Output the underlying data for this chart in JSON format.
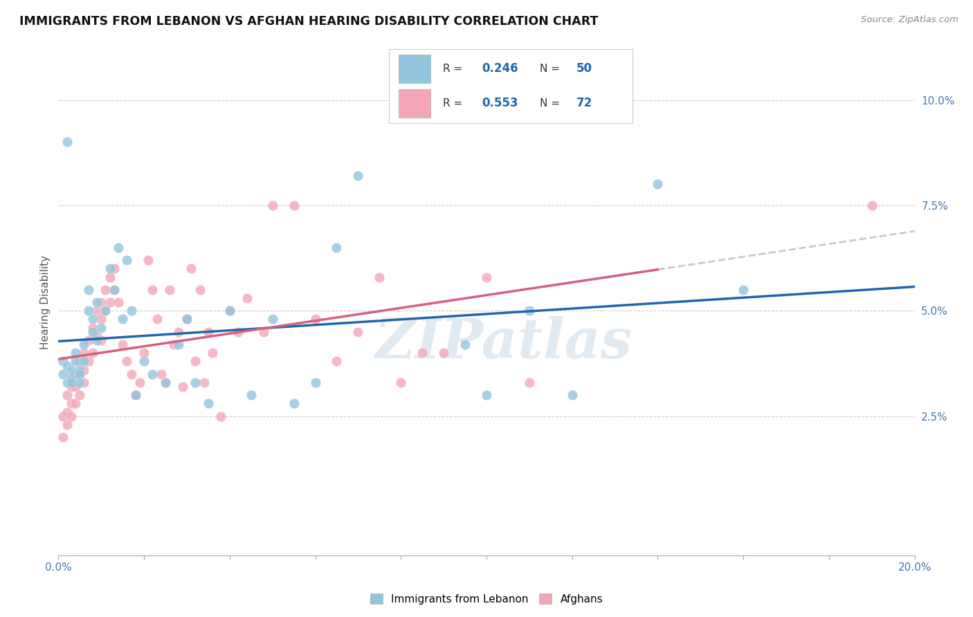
{
  "title": "IMMIGRANTS FROM LEBANON VS AFGHAN HEARING DISABILITY CORRELATION CHART",
  "source": "Source: ZipAtlas.com",
  "ylabel": "Hearing Disability",
  "xlim": [
    0.0,
    0.2
  ],
  "ylim": [
    -0.008,
    0.112
  ],
  "xtick_positions": [
    0.0,
    0.02,
    0.04,
    0.06,
    0.08,
    0.1,
    0.12,
    0.14,
    0.16,
    0.18,
    0.2
  ],
  "xtick_labels": [
    "0.0%",
    "",
    "",
    "",
    "",
    "",
    "",
    "",
    "",
    "",
    "20.0%"
  ],
  "ytick_positions": [
    0.025,
    0.05,
    0.075,
    0.1
  ],
  "ytick_labels": [
    "2.5%",
    "5.0%",
    "7.5%",
    "10.0%"
  ],
  "lebanon_R": 0.246,
  "lebanon_N": 50,
  "afghan_R": 0.553,
  "afghan_N": 72,
  "lebanon_color": "#92c5de",
  "afghan_color": "#f4a6b8",
  "lebanon_line_color": "#2166ac",
  "afghan_line_color": "#d6607a",
  "dashed_color": "#c8c8c8",
  "watermark_text": "ZIPatlas",
  "lebanon_x": [
    0.001,
    0.001,
    0.002,
    0.002,
    0.003,
    0.003,
    0.003,
    0.004,
    0.004,
    0.005,
    0.005,
    0.005,
    0.006,
    0.006,
    0.007,
    0.007,
    0.008,
    0.008,
    0.009,
    0.009,
    0.01,
    0.011,
    0.012,
    0.013,
    0.014,
    0.015,
    0.016,
    0.017,
    0.018,
    0.02,
    0.022,
    0.025,
    0.028,
    0.03,
    0.032,
    0.035,
    0.04,
    0.045,
    0.05,
    0.055,
    0.06,
    0.065,
    0.07,
    0.095,
    0.1,
    0.11,
    0.12,
    0.14,
    0.16,
    0.002
  ],
  "lebanon_y": [
    0.035,
    0.038,
    0.033,
    0.037,
    0.036,
    0.034,
    0.033,
    0.04,
    0.038,
    0.036,
    0.035,
    0.033,
    0.042,
    0.038,
    0.05,
    0.055,
    0.048,
    0.045,
    0.043,
    0.052,
    0.046,
    0.05,
    0.06,
    0.055,
    0.065,
    0.048,
    0.062,
    0.05,
    0.03,
    0.038,
    0.035,
    0.033,
    0.042,
    0.048,
    0.033,
    0.028,
    0.05,
    0.03,
    0.048,
    0.028,
    0.033,
    0.065,
    0.082,
    0.042,
    0.03,
    0.05,
    0.03,
    0.08,
    0.055,
    0.09
  ],
  "afghan_x": [
    0.001,
    0.001,
    0.002,
    0.002,
    0.002,
    0.003,
    0.003,
    0.003,
    0.004,
    0.004,
    0.004,
    0.005,
    0.005,
    0.005,
    0.006,
    0.006,
    0.006,
    0.007,
    0.007,
    0.008,
    0.008,
    0.009,
    0.009,
    0.01,
    0.01,
    0.01,
    0.011,
    0.011,
    0.012,
    0.012,
    0.013,
    0.013,
    0.014,
    0.015,
    0.016,
    0.017,
    0.018,
    0.019,
    0.02,
    0.021,
    0.022,
    0.023,
    0.024,
    0.025,
    0.026,
    0.027,
    0.028,
    0.029,
    0.03,
    0.031,
    0.032,
    0.033,
    0.034,
    0.035,
    0.036,
    0.038,
    0.04,
    0.042,
    0.044,
    0.048,
    0.05,
    0.055,
    0.06,
    0.065,
    0.07,
    0.075,
    0.08,
    0.085,
    0.09,
    0.1,
    0.11,
    0.19
  ],
  "afghan_y": [
    0.025,
    0.02,
    0.03,
    0.026,
    0.023,
    0.032,
    0.028,
    0.025,
    0.035,
    0.032,
    0.028,
    0.038,
    0.035,
    0.03,
    0.04,
    0.036,
    0.033,
    0.043,
    0.038,
    0.046,
    0.04,
    0.05,
    0.044,
    0.052,
    0.048,
    0.043,
    0.055,
    0.05,
    0.058,
    0.052,
    0.06,
    0.055,
    0.052,
    0.042,
    0.038,
    0.035,
    0.03,
    0.033,
    0.04,
    0.062,
    0.055,
    0.048,
    0.035,
    0.033,
    0.055,
    0.042,
    0.045,
    0.032,
    0.048,
    0.06,
    0.038,
    0.055,
    0.033,
    0.045,
    0.04,
    0.025,
    0.05,
    0.045,
    0.053,
    0.045,
    0.075,
    0.075,
    0.048,
    0.038,
    0.045,
    0.058,
    0.033,
    0.04,
    0.04,
    0.058,
    0.033,
    0.075
  ]
}
